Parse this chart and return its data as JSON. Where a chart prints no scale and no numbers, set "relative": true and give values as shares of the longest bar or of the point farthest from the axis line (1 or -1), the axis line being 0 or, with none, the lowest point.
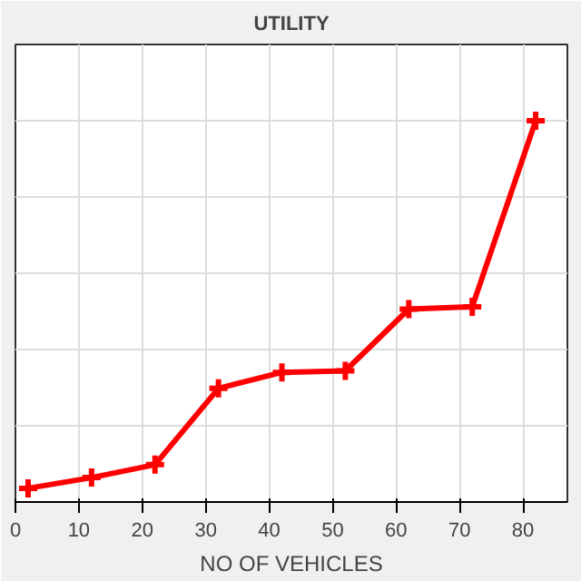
{
  "chart_data": {
    "type": "line",
    "title": "UTILITY",
    "xlabel": "NO OF VEHICLES",
    "relative": true,
    "x": [
      2,
      12,
      22,
      32,
      42,
      52,
      62,
      72,
      82
    ],
    "series": [
      {
        "color": "#ff0000",
        "values": [
          0.036,
          0.064,
          0.098,
          0.298,
          0.34,
          0.344,
          0.506,
          0.512,
          1.0
        ]
      }
    ],
    "xlim": [
      0,
      87
    ],
    "xticks": [
      0,
      10,
      20,
      30,
      40,
      50,
      60,
      70,
      80
    ],
    "grid": true,
    "marker": "cross",
    "line_style": "solid"
  }
}
